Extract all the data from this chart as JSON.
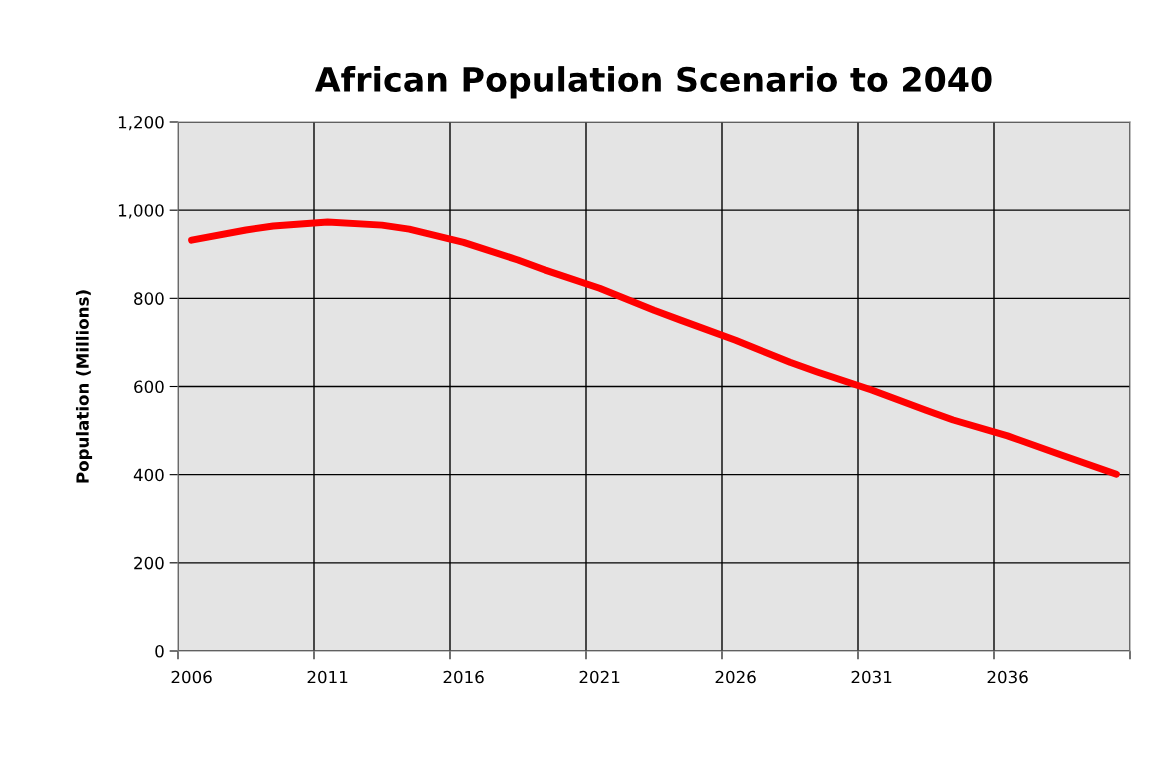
{
  "chart_data": {
    "type": "line",
    "title": "African Population Scenario to 2040",
    "ylabel": "Population (Millions)",
    "x": [
      2006,
      2008,
      2009,
      2011,
      2013,
      2014,
      2016,
      2018,
      2019,
      2021,
      2023,
      2024,
      2026,
      2028,
      2029,
      2031,
      2033,
      2034,
      2036,
      2038,
      2040
    ],
    "series": [
      {
        "color": "#ff0000",
        "values": [
          932,
          955,
          964,
          973,
          966,
          957,
          927,
          887,
          864,
          823,
          773,
          750,
          705,
          655,
          633,
          592,
          546,
          524,
          488,
          444,
          401
        ]
      }
    ],
    "xlim": [
      2005.5,
      2040.5
    ],
    "xticks": [
      {
        "value": 2005.5,
        "label": null
      },
      {
        "value": 2010.5,
        "label": null
      },
      {
        "value": 2015.5,
        "label": null
      },
      {
        "value": 2020.5,
        "label": null
      },
      {
        "value": 2025.5,
        "label": null
      },
      {
        "value": 2030.5,
        "label": null
      },
      {
        "value": 2035.5,
        "label": null
      },
      {
        "value": 2040.5,
        "label": null
      },
      2006,
      2011,
      2016,
      2021,
      2026,
      2031,
      2036
    ],
    "ylim": [
      0,
      1200
    ],
    "yticks": [
      0,
      200,
      400,
      600,
      800,
      {
        "value": 1000,
        "label": "1,000"
      },
      {
        "value": 1200,
        "label": "1,200"
      }
    ],
    "grid": true,
    "marker": "none",
    "line_style": "solid",
    "legend": false
  }
}
